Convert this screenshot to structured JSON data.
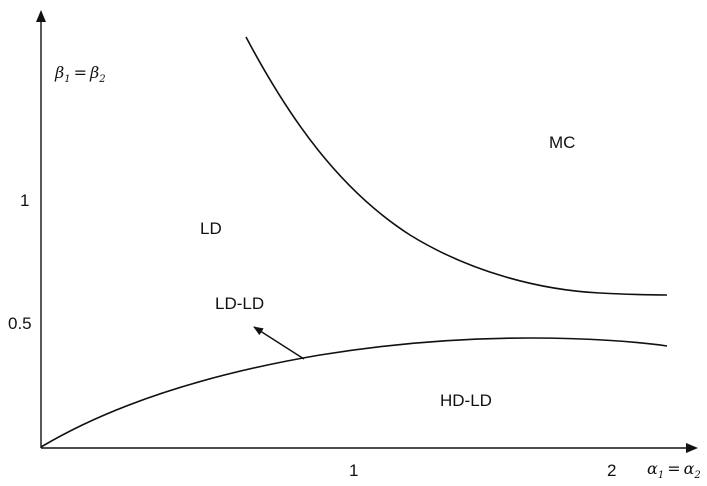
{
  "axes": {
    "x_label": {
      "greek": "α",
      "sub1": "1",
      "eq": "=",
      "sub2": "2"
    },
    "y_label": {
      "greek": "β",
      "sub1": "1",
      "eq": "=",
      "sub2": "2"
    },
    "x_ticks": [
      "1",
      "2"
    ],
    "y_ticks": [
      "0.5",
      "1"
    ]
  },
  "regions": {
    "ld": "LD",
    "mc": "MC",
    "ld_ld": "LD-LD",
    "hd_ld": "HD-LD"
  },
  "colors": {
    "ink": "#111111",
    "background": "#ffffff"
  }
}
